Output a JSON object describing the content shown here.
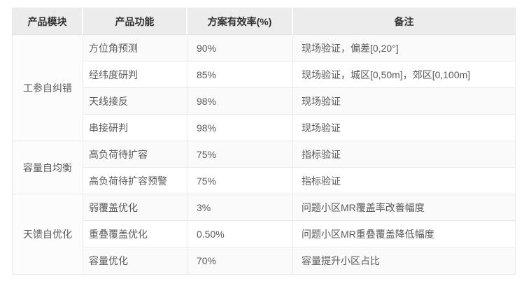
{
  "table": {
    "headers": [
      "产品模块",
      "产品功能",
      "方案有效率(%)",
      "备注"
    ],
    "groups": [
      {
        "module": "工参自纠错",
        "rows": [
          {
            "function": "方位角预测",
            "rate": "90%",
            "note": "现场验证，偏差[0,20°]"
          },
          {
            "function": "经纬度研判",
            "rate": "85%",
            "note": "现场验证，城区[0,50m]，郊区[0,100m]"
          },
          {
            "function": "天线接反",
            "rate": "98%",
            "note": "现场验证"
          },
          {
            "function": "串接研判",
            "rate": "98%",
            "note": "现场验证"
          }
        ]
      },
      {
        "module": "容量自均衡",
        "rows": [
          {
            "function": "高负荷待扩容",
            "rate": "75%",
            "note": "指标验证"
          },
          {
            "function": "高负荷待扩容预警",
            "rate": "75%",
            "note": "指标验证"
          }
        ]
      },
      {
        "module": "天馈自优化",
        "rows": [
          {
            "function": "弱覆盖优化",
            "rate": "3%",
            "note": "问题小区MR覆盖率改善幅度"
          },
          {
            "function": "重叠覆盖优化",
            "rate": "0.50%",
            "note": "问题小区MR重叠覆盖降低幅度"
          },
          {
            "function": "容量优化",
            "rate": "70%",
            "note": "容量提升小区占比"
          }
        ]
      }
    ]
  },
  "colors": {
    "header_bg": "#ececec",
    "stripe_bg": "#fafafa",
    "module_cell_bg": "#fcfcfc",
    "border": "#ebebeb",
    "header_text": "#333333",
    "body_text": "#5a5a5a",
    "page_bg": "#ffffff"
  }
}
